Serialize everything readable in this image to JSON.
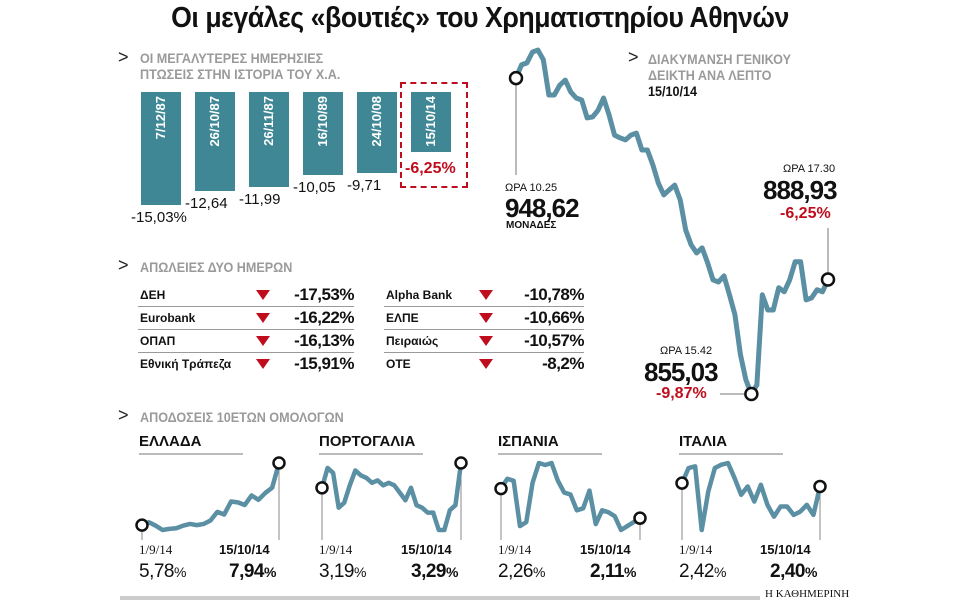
{
  "title": "Οι μεγάλες «βουτιές» του Χρηματιστηρίου Αθηνών",
  "colors": {
    "bar": "#3f8795",
    "line": "#5b8fa3",
    "highlight": "#c00d1e",
    "text": "#111111",
    "section_title": "#9a9a9a"
  },
  "biggest_drops": {
    "title_line1": "ΟΙ ΜΕΓΑΛΥΤΕΡΕΣ ΗΜΕΡΗΣΙΕΣ",
    "title_line2": "ΠΤΩΣΕΙΣ ΣΤΗΝ ΙΣΤΟΡΙΑ ΤΟΥ Χ.Α.",
    "chart_data": {
      "type": "bar",
      "categories": [
        "7/12/87",
        "26/10/87",
        "26/11/87",
        "16/10/89",
        "24/10/08",
        "15/10/14"
      ],
      "values": [
        -15.03,
        -12.64,
        -11.99,
        -10.05,
        -9.71,
        -6.25
      ],
      "labels": [
        "-15,03%",
        "-12,64",
        "-11,99",
        "-10,05",
        "-9,71",
        "-6,25%"
      ],
      "highlighted": "15/10/14"
    }
  },
  "two_day_losses": {
    "title": "ΑΠΩΛΕΙΕΣ ΔΥΟ ΗΜΕΡΩΝ",
    "icon": "down-triangle-icon",
    "left": [
      {
        "name": "ΔΕΗ",
        "change": "-17,53%"
      },
      {
        "name": "Eurobank",
        "change": "-16,22%"
      },
      {
        "name": "ΟΠΑΠ",
        "change": "-16,13%"
      },
      {
        "name": "Εθνική Τράπεζα",
        "change": "-15,91%"
      }
    ],
    "right": [
      {
        "name": "Alpha Bank",
        "change": "-10,78%"
      },
      {
        "name": "ΕΛΠΕ",
        "change": "-10,66%"
      },
      {
        "name": "Πειραιώς",
        "change": "-10,57%"
      },
      {
        "name": "ΟΤΕ",
        "change": "-8,2%"
      }
    ]
  },
  "intraday": {
    "title_line1": "ΔΙΑΚΥΜΑΝΣΗ ΓΕΝΙΚΟΥ",
    "title_line2": "ΔΕΙΚΤΗ ΑΝΑ ΛΕΠΤΟ",
    "date": "15/10/14",
    "start": {
      "time": "ΩΡΑ 10.25",
      "value": "948,62",
      "unit": "ΜΟΝΑΔΕΣ"
    },
    "low": {
      "time": "ΩΡΑ 15.42",
      "value": "855,03",
      "change": "-9,87%"
    },
    "end": {
      "time": "ΩΡΑ 17.30",
      "value": "888,93",
      "change": "-6,25%"
    },
    "chart_data": {
      "type": "line",
      "x_range": [
        "10:25",
        "17:30"
      ],
      "values": [
        948.6,
        952.5,
        953.1,
        956.3,
        956.9,
        954.0,
        943.6,
        943.6,
        946.5,
        948.0,
        944.5,
        942.7,
        942.1,
        936.8,
        937.1,
        939.1,
        942.7,
        937.7,
        931.7,
        930.9,
        930.3,
        931.7,
        932.3,
        927.3,
        927.3,
        922.9,
        917.5,
        914.0,
        915.5,
        916.9,
        912.5,
        903.6,
        899.2,
        896.8,
        898.3,
        893.9,
        888.8,
        888.2,
        890.0,
        884.4,
        878.5,
        866.7,
        859.2,
        855.03,
        857.7,
        884.4,
        879.9,
        879.9,
        886.5,
        885.3,
        888.8,
        894.2,
        894.2,
        882.9,
        883.5,
        885.9,
        885.3,
        888.93
      ]
    }
  },
  "bond_yields": {
    "title": "ΑΠΟΔΟΣΕΙΣ 10ΕΤΩΝ ΟΜΟΛΟΓΩΝ",
    "chart_data": [
      {
        "type": "line",
        "name": "ΕΛΛΑΔΑ",
        "start_date": "1/9/14",
        "end_date": "15/10/14",
        "start_value": "5,78",
        "end_value": "7,94",
        "unit": "%",
        "values": [
          5.78,
          5.88,
          5.76,
          5.61,
          5.65,
          5.67,
          5.76,
          5.82,
          5.78,
          5.82,
          5.94,
          6.24,
          6.15,
          6.6,
          6.57,
          6.48,
          6.81,
          6.66,
          6.9,
          7.08,
          7.94
        ]
      },
      {
        "type": "line",
        "name": "ΠΟΡΤΟΓΑΛΙΑ",
        "start_date": "1/9/14",
        "end_date": "15/10/14",
        "start_value": "3,19",
        "end_value": "3,29",
        "unit": "%",
        "values": [
          3.19,
          3.27,
          3.25,
          3.11,
          3.13,
          3.2,
          3.26,
          3.24,
          3.23,
          3.21,
          3.22,
          3.2,
          3.21,
          3.2,
          3.17,
          3.14,
          3.19,
          3.12,
          3.11,
          3.09,
          3.09,
          3.02,
          3.02,
          3.1,
          3.12,
          3.29
        ]
      },
      {
        "type": "line",
        "name": "ΙΣΠΑΝΙΑ",
        "start_date": "1/9/14",
        "end_date": "15/10/14",
        "start_value": "2,26",
        "end_value": "2,11",
        "unit": "%",
        "values": [
          2.26,
          2.31,
          2.3,
          2.07,
          2.09,
          2.29,
          2.39,
          2.38,
          2.39,
          2.3,
          2.24,
          2.23,
          2.15,
          2.16,
          2.25,
          2.08,
          2.15,
          2.14,
          2.12,
          2.05,
          2.07,
          2.09,
          2.11
        ]
      },
      {
        "type": "line",
        "name": "ΙΤΑΛΙΑ",
        "start_date": "1/9/14",
        "end_date": "15/10/14",
        "start_value": "2,42",
        "end_value": "2,40",
        "unit": "%",
        "values": [
          2.42,
          2.51,
          2.52,
          2.14,
          2.37,
          2.51,
          2.53,
          2.54,
          2.45,
          2.35,
          2.4,
          2.31,
          2.41,
          2.29,
          2.22,
          2.28,
          2.28,
          2.23,
          2.25,
          2.29,
          2.23,
          2.4
        ]
      }
    ]
  },
  "footer": {
    "source": "Η ΚΑΘΗΜΕΡΙΝΗ"
  }
}
